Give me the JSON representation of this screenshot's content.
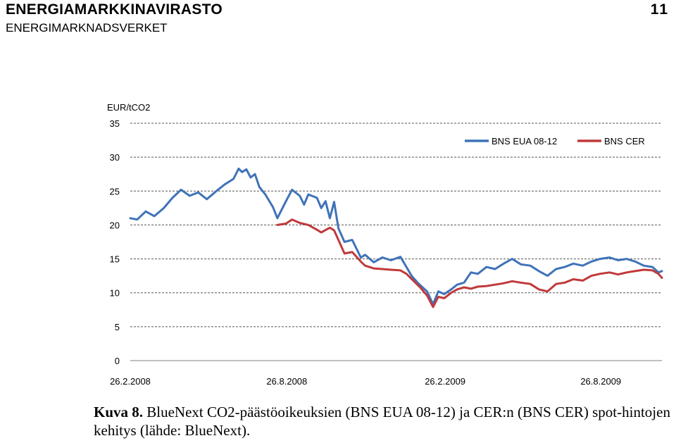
{
  "header": {
    "title": "ENERGIAMARKKINAVIRASTO",
    "subtitle": "ENERGIMARKNADSVERKET",
    "page_number": "11"
  },
  "caption": {
    "label": "Kuva 8.",
    "text": "BlueNext CO2-päästöoikeuksien (BNS EUA 08-12) ja CER:n (BNS CER) spot-hintojen kehitys (lähde: BlueNext)."
  },
  "colors": {
    "eua": "#3f73b8",
    "cer": "#c0393b",
    "grid": "#555555"
  },
  "chart_data": {
    "type": "line",
    "title": "",
    "ylabel": "EUR/tCO2",
    "xlabel": "",
    "ylim": [
      0,
      35
    ],
    "yticks": [
      0,
      5,
      10,
      15,
      20,
      25,
      30,
      35
    ],
    "xticks": [
      "26.2.2008",
      "26.8.2008",
      "26.2.2009",
      "26.8.2009"
    ],
    "xlim": [
      "2008-02-26",
      "2009-11-05"
    ],
    "grid": true,
    "legend_position": "top-right",
    "series": [
      {
        "name": "BNS EUA 08-12",
        "color": "#3f73b8",
        "points": [
          [
            "2008-02-26",
            21.0
          ],
          [
            "2008-03-05",
            20.8
          ],
          [
            "2008-03-15",
            22.0
          ],
          [
            "2008-03-25",
            21.3
          ],
          [
            "2008-04-05",
            22.5
          ],
          [
            "2008-04-15",
            24.0
          ],
          [
            "2008-04-25",
            25.2
          ],
          [
            "2008-05-05",
            24.3
          ],
          [
            "2008-05-15",
            24.8
          ],
          [
            "2008-05-25",
            23.8
          ],
          [
            "2008-06-05",
            25.0
          ],
          [
            "2008-06-15",
            26.0
          ],
          [
            "2008-06-25",
            26.8
          ],
          [
            "2008-07-01",
            28.3
          ],
          [
            "2008-07-05",
            27.8
          ],
          [
            "2008-07-10",
            28.2
          ],
          [
            "2008-07-15",
            27.0
          ],
          [
            "2008-07-20",
            27.5
          ],
          [
            "2008-07-25",
            25.6
          ],
          [
            "2008-08-01",
            24.5
          ],
          [
            "2008-08-10",
            22.6
          ],
          [
            "2008-08-15",
            21.0
          ],
          [
            "2008-08-25",
            23.5
          ],
          [
            "2008-09-01",
            25.2
          ],
          [
            "2008-09-10",
            24.3
          ],
          [
            "2008-09-15",
            23.0
          ],
          [
            "2008-09-20",
            24.5
          ],
          [
            "2008-09-30",
            24.0
          ],
          [
            "2008-10-05",
            22.5
          ],
          [
            "2008-10-10",
            23.5
          ],
          [
            "2008-10-15",
            21.0
          ],
          [
            "2008-10-20",
            23.4
          ],
          [
            "2008-10-25",
            19.5
          ],
          [
            "2008-11-01",
            17.5
          ],
          [
            "2008-11-10",
            17.8
          ],
          [
            "2008-11-15",
            16.5
          ],
          [
            "2008-11-20",
            15.2
          ],
          [
            "2008-11-25",
            15.6
          ],
          [
            "2008-12-05",
            14.5
          ],
          [
            "2008-12-15",
            15.2
          ],
          [
            "2008-12-25",
            14.8
          ],
          [
            "2009-01-05",
            15.3
          ],
          [
            "2009-01-12",
            13.8
          ],
          [
            "2009-01-18",
            12.5
          ],
          [
            "2009-01-25",
            11.5
          ],
          [
            "2009-02-05",
            10.2
          ],
          [
            "2009-02-12",
            8.3
          ],
          [
            "2009-02-18",
            10.2
          ],
          [
            "2009-02-25",
            9.8
          ],
          [
            "2009-03-05",
            10.5
          ],
          [
            "2009-03-12",
            11.2
          ],
          [
            "2009-03-20",
            11.5
          ],
          [
            "2009-03-28",
            13.0
          ],
          [
            "2009-04-05",
            12.8
          ],
          [
            "2009-04-15",
            13.8
          ],
          [
            "2009-04-25",
            13.5
          ],
          [
            "2009-05-05",
            14.3
          ],
          [
            "2009-05-15",
            15.0
          ],
          [
            "2009-05-25",
            14.2
          ],
          [
            "2009-06-05",
            14.0
          ],
          [
            "2009-06-15",
            13.2
          ],
          [
            "2009-06-25",
            12.5
          ],
          [
            "2009-07-05",
            13.5
          ],
          [
            "2009-07-15",
            13.8
          ],
          [
            "2009-07-25",
            14.3
          ],
          [
            "2009-08-05",
            14.0
          ],
          [
            "2009-08-15",
            14.6
          ],
          [
            "2009-08-25",
            15.0
          ],
          [
            "2009-09-05",
            15.2
          ],
          [
            "2009-09-15",
            14.8
          ],
          [
            "2009-09-25",
            15.0
          ],
          [
            "2009-10-05",
            14.6
          ],
          [
            "2009-10-15",
            14.0
          ],
          [
            "2009-10-25",
            13.8
          ],
          [
            "2009-11-01",
            13.0
          ],
          [
            "2009-11-05",
            13.2
          ]
        ]
      },
      {
        "name": "BNS CER",
        "color": "#c0393b",
        "points": [
          [
            "2008-08-15",
            20.0
          ],
          [
            "2008-08-25",
            20.2
          ],
          [
            "2008-09-01",
            20.8
          ],
          [
            "2008-09-10",
            20.3
          ],
          [
            "2008-09-20",
            20.0
          ],
          [
            "2008-09-30",
            19.3
          ],
          [
            "2008-10-05",
            18.9
          ],
          [
            "2008-10-15",
            19.6
          ],
          [
            "2008-10-20",
            19.2
          ],
          [
            "2008-10-25",
            17.8
          ],
          [
            "2008-11-01",
            15.8
          ],
          [
            "2008-11-10",
            16.0
          ],
          [
            "2008-11-20",
            14.6
          ],
          [
            "2008-11-25",
            14.0
          ],
          [
            "2008-12-05",
            13.6
          ],
          [
            "2008-12-15",
            13.5
          ],
          [
            "2008-12-25",
            13.4
          ],
          [
            "2009-01-05",
            13.3
          ],
          [
            "2009-01-12",
            12.8
          ],
          [
            "2009-01-20",
            11.8
          ],
          [
            "2009-01-28",
            10.8
          ],
          [
            "2009-02-05",
            9.6
          ],
          [
            "2009-02-12",
            7.9
          ],
          [
            "2009-02-18",
            9.4
          ],
          [
            "2009-02-25",
            9.2
          ],
          [
            "2009-03-05",
            10.0
          ],
          [
            "2009-03-12",
            10.5
          ],
          [
            "2009-03-20",
            10.8
          ],
          [
            "2009-03-28",
            10.6
          ],
          [
            "2009-04-05",
            10.9
          ],
          [
            "2009-04-15",
            11.0
          ],
          [
            "2009-04-25",
            11.2
          ],
          [
            "2009-05-05",
            11.4
          ],
          [
            "2009-05-15",
            11.7
          ],
          [
            "2009-05-25",
            11.5
          ],
          [
            "2009-06-05",
            11.3
          ],
          [
            "2009-06-15",
            10.5
          ],
          [
            "2009-06-25",
            10.2
          ],
          [
            "2009-07-05",
            11.3
          ],
          [
            "2009-07-15",
            11.5
          ],
          [
            "2009-07-25",
            12.0
          ],
          [
            "2009-08-05",
            11.8
          ],
          [
            "2009-08-15",
            12.5
          ],
          [
            "2009-08-25",
            12.8
          ],
          [
            "2009-09-05",
            13.0
          ],
          [
            "2009-09-15",
            12.7
          ],
          [
            "2009-09-25",
            13.0
          ],
          [
            "2009-10-05",
            13.2
          ],
          [
            "2009-10-15",
            13.4
          ],
          [
            "2009-10-25",
            13.3
          ],
          [
            "2009-11-01",
            12.8
          ],
          [
            "2009-11-05",
            12.2
          ]
        ]
      }
    ]
  }
}
